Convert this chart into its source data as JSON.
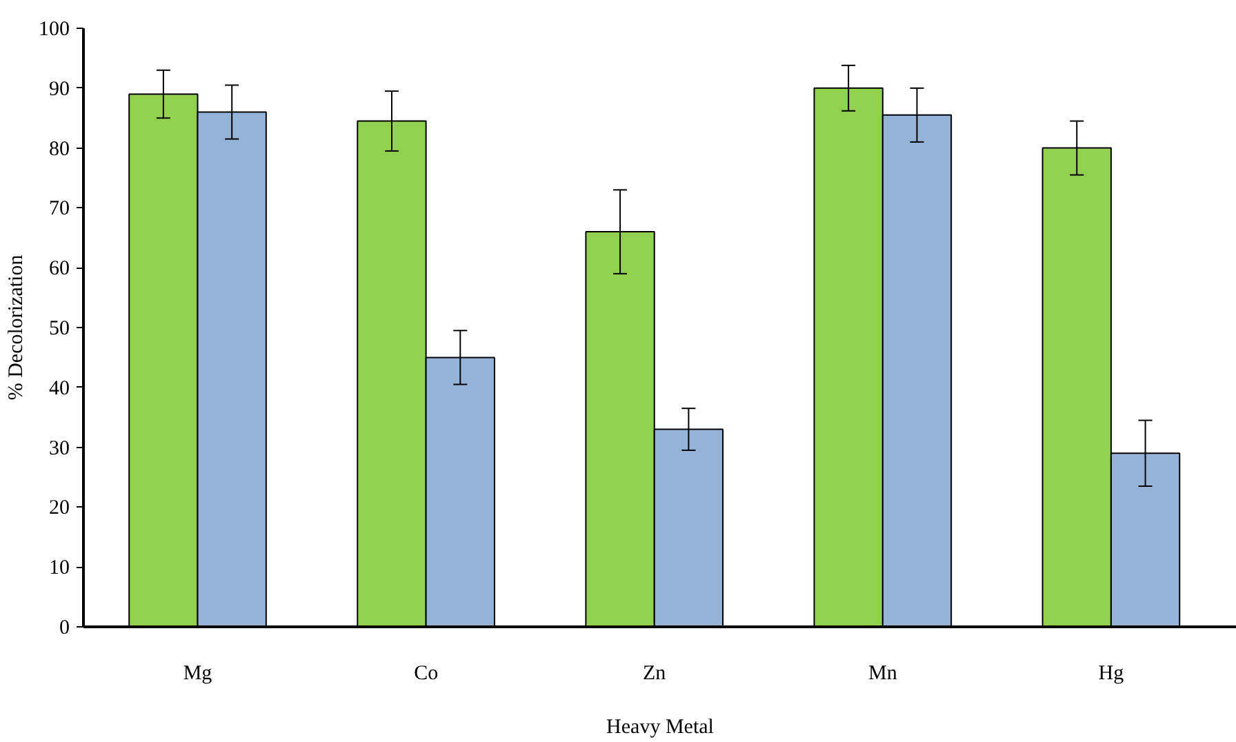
{
  "chart_data": {
    "type": "bar",
    "xlabel": "Heavy Metal",
    "ylabel": "% Decolorization",
    "categories": [
      "Mg",
      "Co",
      "Zn",
      "Mn",
      "Hg"
    ],
    "series": [
      {
        "color": "#92d050",
        "values": [
          89,
          84.5,
          66,
          90,
          80
        ],
        "errors": [
          4,
          5,
          7,
          3.8,
          4.5
        ]
      },
      {
        "color": "#95b3d7",
        "values": [
          86,
          45,
          33,
          85.5,
          29
        ],
        "errors": [
          4.5,
          4.5,
          3.5,
          4.5,
          5.5
        ]
      }
    ],
    "ylim": [
      0,
      100
    ],
    "yticks": [
      0,
      10,
      20,
      30,
      40,
      50,
      60,
      70,
      80,
      90,
      100
    ],
    "grid": false
  }
}
